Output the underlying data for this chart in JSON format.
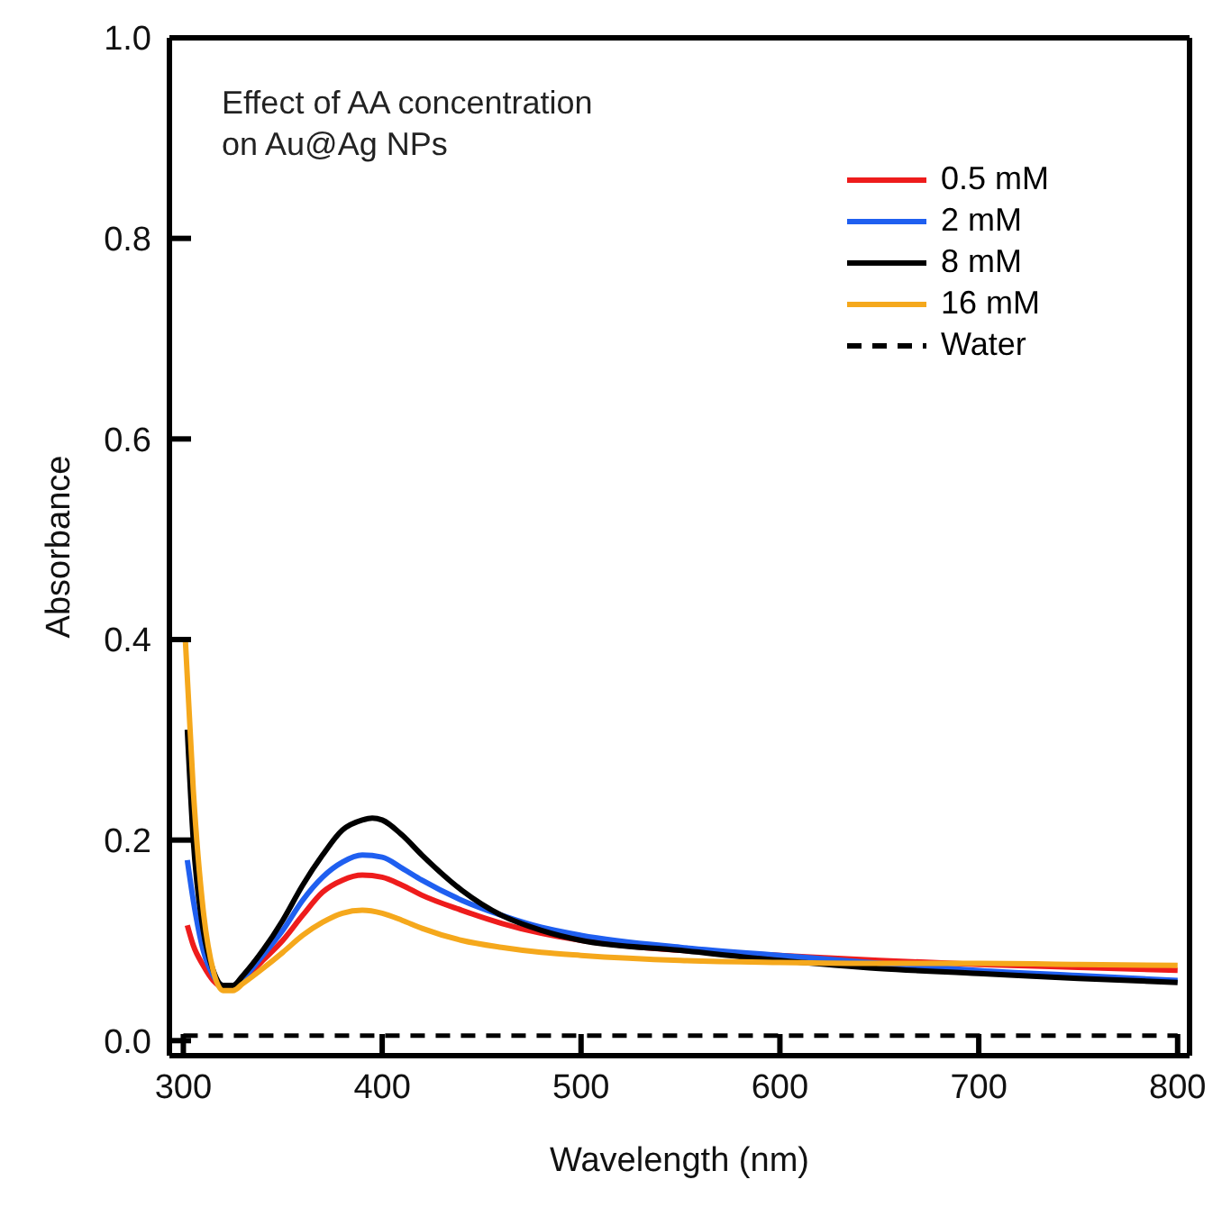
{
  "chart_data": {
    "type": "line",
    "xlabel": "Wavelength (nm)",
    "ylabel": "Absorbance",
    "annotations": [
      "Effect of AA concentration\non Au@Ag NPs"
    ],
    "xlim": [
      293,
      806
    ],
    "xticks": [
      300,
      400,
      500,
      600,
      700,
      800
    ],
    "ylim": [
      -0.015,
      1.0
    ],
    "yticks": [
      {
        "value": 0,
        "label": "0.0"
      },
      0.2,
      0.4,
      0.6,
      0.8,
      {
        "value": 1,
        "label": "1.0"
      }
    ],
    "grid": false,
    "legend": "top right",
    "marker": "none",
    "series": [
      {
        "name": "0.5 mM",
        "color": "#ee1c1c",
        "x": [
          302,
          305,
          310,
          315,
          320,
          325,
          330,
          340,
          350,
          360,
          370,
          380,
          390,
          400,
          410,
          420,
          440,
          460,
          480,
          500,
          550,
          600,
          650,
          700,
          750,
          800
        ],
        "values": [
          0.115,
          0.095,
          0.075,
          0.06,
          0.053,
          0.053,
          0.06,
          0.08,
          0.1,
          0.125,
          0.148,
          0.16,
          0.165,
          0.163,
          0.155,
          0.145,
          0.13,
          0.117,
          0.107,
          0.1,
          0.09,
          0.085,
          0.08,
          0.076,
          0.073,
          0.07
        ]
      },
      {
        "name": "2 mM",
        "color": "#1f5ff0",
        "x": [
          302,
          305,
          310,
          315,
          320,
          325,
          330,
          340,
          350,
          360,
          370,
          380,
          390,
          400,
          410,
          420,
          440,
          460,
          480,
          500,
          550,
          600,
          650,
          700,
          750,
          800
        ],
        "values": [
          0.18,
          0.14,
          0.09,
          0.065,
          0.055,
          0.055,
          0.062,
          0.085,
          0.11,
          0.14,
          0.163,
          0.178,
          0.185,
          0.183,
          0.172,
          0.16,
          0.14,
          0.125,
          0.113,
          0.105,
          0.093,
          0.085,
          0.077,
          0.07,
          0.065,
          0.06
        ]
      },
      {
        "name": "8 mM",
        "color": "#000000",
        "x": [
          302,
          305,
          310,
          315,
          320,
          325,
          330,
          340,
          350,
          360,
          370,
          380,
          390,
          395,
          400,
          410,
          420,
          440,
          460,
          480,
          500,
          550,
          600,
          650,
          700,
          750,
          800
        ],
        "values": [
          0.31,
          0.2,
          0.11,
          0.07,
          0.055,
          0.055,
          0.065,
          0.09,
          0.12,
          0.155,
          0.185,
          0.21,
          0.22,
          0.222,
          0.22,
          0.205,
          0.185,
          0.15,
          0.125,
          0.11,
          0.1,
          0.09,
          0.08,
          0.072,
          0.067,
          0.062,
          0.058
        ]
      },
      {
        "name": "16 mM",
        "color": "#f5a81c",
        "x": [
          301,
          305,
          310,
          315,
          320,
          325,
          330,
          340,
          350,
          360,
          370,
          380,
          390,
          400,
          410,
          420,
          440,
          460,
          480,
          500,
          550,
          600,
          650,
          700,
          750,
          800
        ],
        "values": [
          0.4,
          0.25,
          0.13,
          0.07,
          0.05,
          0.05,
          0.057,
          0.072,
          0.088,
          0.105,
          0.118,
          0.127,
          0.13,
          0.127,
          0.12,
          0.112,
          0.1,
          0.093,
          0.088,
          0.085,
          0.08,
          0.078,
          0.077,
          0.077,
          0.076,
          0.075
        ]
      },
      {
        "name": "Water",
        "color": "#000000",
        "line_style": "dashed",
        "x": [
          300,
          800
        ],
        "values": [
          0.005,
          0.005
        ]
      }
    ]
  }
}
